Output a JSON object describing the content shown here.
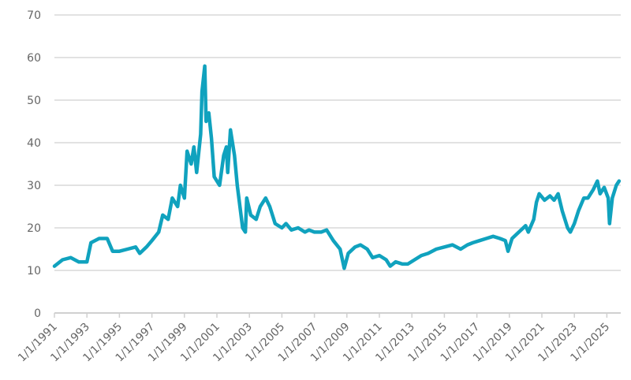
{
  "chart_data": {
    "type": "line",
    "title": "",
    "xlabel": "",
    "ylabel": "",
    "ylim": [
      0,
      70
    ],
    "yticks": [
      0,
      10,
      20,
      30,
      40,
      50,
      60,
      70
    ],
    "xlim": [
      "1991-01",
      "2025-11"
    ],
    "xticks": [
      "1/1/1991",
      "1/1/1993",
      "1/1/1995",
      "1/1/1997",
      "1/1/1999",
      "1/1/2001",
      "1/1/2003",
      "1/1/2005",
      "1/1/2007",
      "1/1/2009",
      "1/1/2011",
      "1/1/2013",
      "1/1/2015",
      "1/1/2017",
      "1/1/2019",
      "1/1/2021",
      "1/1/2023",
      "1/1/2025"
    ],
    "grid": "horizontal",
    "line_color": "#10a2be",
    "series": [
      {
        "points": [
          [
            "1991-01",
            11
          ],
          [
            "1991-07",
            12.5
          ],
          [
            "1992-01",
            13
          ],
          [
            "1992-07",
            12
          ],
          [
            "1993-01",
            12
          ],
          [
            "1993-04",
            16.5
          ],
          [
            "1993-10",
            17.5
          ],
          [
            "1994-04",
            17.5
          ],
          [
            "1994-08",
            14.5
          ],
          [
            "1995-01",
            14.5
          ],
          [
            "1995-07",
            15
          ],
          [
            "1996-01",
            15.5
          ],
          [
            "1996-04",
            14
          ],
          [
            "1996-09",
            15.5
          ],
          [
            "1997-01",
            17
          ],
          [
            "1997-06",
            19
          ],
          [
            "1997-09",
            23
          ],
          [
            "1998-01",
            22
          ],
          [
            "1998-04",
            27
          ],
          [
            "1998-08",
            25
          ],
          [
            "1998-10",
            30
          ],
          [
            "1999-01",
            27
          ],
          [
            "1999-03",
            38
          ],
          [
            "1999-06",
            35
          ],
          [
            "1999-08",
            39
          ],
          [
            "1999-10",
            33
          ],
          [
            "2000-01",
            42
          ],
          [
            "2000-02",
            52
          ],
          [
            "2000-04",
            58
          ],
          [
            "2000-05",
            45
          ],
          [
            "2000-07",
            47
          ],
          [
            "2000-09",
            41
          ],
          [
            "2000-11",
            32
          ],
          [
            "2001-03",
            30
          ],
          [
            "2001-06",
            37
          ],
          [
            "2001-08",
            39
          ],
          [
            "2001-09",
            33
          ],
          [
            "2001-11",
            43
          ],
          [
            "2002-02",
            37
          ],
          [
            "2002-04",
            30
          ],
          [
            "2002-08",
            20
          ],
          [
            "2002-10",
            19
          ],
          [
            "2002-11",
            27
          ],
          [
            "2003-02",
            23
          ],
          [
            "2003-06",
            22
          ],
          [
            "2003-09",
            25
          ],
          [
            "2004-01",
            27
          ],
          [
            "2004-04",
            25
          ],
          [
            "2004-08",
            21
          ],
          [
            "2005-01",
            20
          ],
          [
            "2005-04",
            21
          ],
          [
            "2005-08",
            19.5
          ],
          [
            "2006-01",
            20
          ],
          [
            "2006-06",
            19
          ],
          [
            "2006-09",
            19.5
          ],
          [
            "2007-01",
            19
          ],
          [
            "2007-06",
            19
          ],
          [
            "2007-10",
            19.5
          ],
          [
            "2008-03",
            17
          ],
          [
            "2008-08",
            15
          ],
          [
            "2008-11",
            10.5
          ],
          [
            "2009-02",
            14
          ],
          [
            "2009-07",
            15.5
          ],
          [
            "2009-11",
            16
          ],
          [
            "2010-04",
            15
          ],
          [
            "2010-08",
            13
          ],
          [
            "2011-01",
            13.5
          ],
          [
            "2011-06",
            12.5
          ],
          [
            "2011-09",
            11
          ],
          [
            "2012-01",
            12
          ],
          [
            "2012-06",
            11.5
          ],
          [
            "2012-10",
            11.5
          ],
          [
            "2013-03",
            12.5
          ],
          [
            "2013-08",
            13.5
          ],
          [
            "2014-01",
            14
          ],
          [
            "2014-07",
            15
          ],
          [
            "2015-01",
            15.5
          ],
          [
            "2015-07",
            16
          ],
          [
            "2016-01",
            15
          ],
          [
            "2016-06",
            16
          ],
          [
            "2016-10",
            16.5
          ],
          [
            "2017-03",
            17
          ],
          [
            "2017-08",
            17.5
          ],
          [
            "2018-01",
            18
          ],
          [
            "2018-06",
            17.5
          ],
          [
            "2018-10",
            17
          ],
          [
            "2018-12",
            14.5
          ],
          [
            "2019-03",
            17.5
          ],
          [
            "2019-08",
            19
          ],
          [
            "2020-01",
            20.5
          ],
          [
            "2020-03",
            19
          ],
          [
            "2020-07",
            22
          ],
          [
            "2020-09",
            26
          ],
          [
            "2020-11",
            28
          ],
          [
            "2021-03",
            26.5
          ],
          [
            "2021-07",
            27.5
          ],
          [
            "2021-10",
            26.5
          ],
          [
            "2022-01",
            28
          ],
          [
            "2022-04",
            24
          ],
          [
            "2022-08",
            20
          ],
          [
            "2022-10",
            19
          ],
          [
            "2023-01",
            21
          ],
          [
            "2023-04",
            24
          ],
          [
            "2023-08",
            27
          ],
          [
            "2023-11",
            27
          ],
          [
            "2024-03",
            29
          ],
          [
            "2024-06",
            31
          ],
          [
            "2024-08",
            28
          ],
          [
            "2024-11",
            29.5
          ],
          [
            "2025-02",
            27
          ],
          [
            "2025-03",
            21
          ],
          [
            "2025-05",
            27
          ],
          [
            "2025-08",
            30
          ],
          [
            "2025-10",
            31
          ]
        ]
      }
    ]
  }
}
